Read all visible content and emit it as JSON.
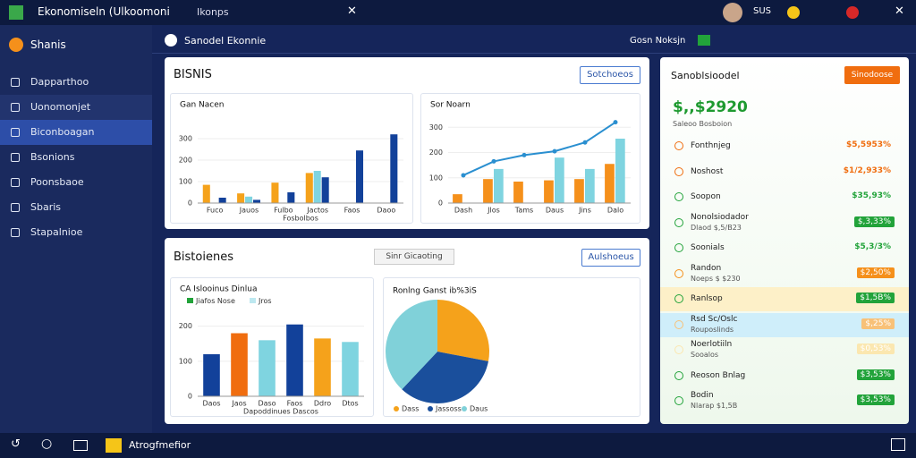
{
  "topbar": {
    "title": "Ekonomiseln (Ulkoomoni",
    "tab": "Ikonps",
    "user": "SUS"
  },
  "sidebar": {
    "brand": "Shanis",
    "items": [
      "Dapparthoo",
      "Uonomonjet",
      "Biconboagan",
      "Bsonions",
      "Poonsbaoe",
      "Sbaris",
      "Stapalnioe"
    ]
  },
  "header": {
    "title": "Sanodel Ekonnie",
    "right": "Gosn Noksjn"
  },
  "panel1": {
    "title": "BISNIS",
    "button": "Sotchoeos"
  },
  "panel2": {
    "title": "Bistoienes",
    "dropdown": "Sinr Gicaoting",
    "button": "Aulshoeus"
  },
  "chart1": {
    "type": "bar",
    "title": "Gan Nacen",
    "subtitle": "Fosbolbos",
    "categories": [
      "Fuco",
      "Jauos",
      "Fulbo",
      "Jactos",
      "Faos",
      "Daoo"
    ],
    "series": [
      {
        "color": "#f5a21b",
        "values": [
          85,
          45,
          95,
          140,
          null,
          null
        ]
      },
      {
        "color": "#7fd4e0",
        "values": [
          null,
          30,
          null,
          150,
          null,
          null
        ]
      },
      {
        "color": "#12419a",
        "values": [
          25,
          15,
          50,
          120,
          245,
          320
        ]
      }
    ],
    "ylim": [
      0,
      400
    ],
    "yticks": [
      0,
      100,
      200,
      300
    ]
  },
  "chart2": {
    "type": "bar",
    "title": "Sor Noarn",
    "categories": [
      "Dash",
      "Jlos",
      "Tams",
      "Daus",
      "Jins",
      "Dalo"
    ],
    "series": [
      {
        "color": "#f5901b",
        "values": [
          35,
          95,
          85,
          90,
          95,
          155
        ]
      },
      {
        "color": "#7fd4e0",
        "values": [
          null,
          135,
          null,
          180,
          135,
          255
        ]
      },
      {
        "color": "#2a8fd0",
        "style": "line",
        "values": [
          110,
          165,
          190,
          205,
          240,
          320
        ]
      }
    ],
    "ylim": [
      0,
      340
    ],
    "yticks": [
      0,
      100,
      200,
      300
    ]
  },
  "chart3": {
    "type": "bar",
    "title": "CA Islooinus Dinlua",
    "subtitle": "Dapoddinues Dascos",
    "categories": [
      "Daos",
      "Jaos",
      "Daso",
      "Faos",
      "Ddro",
      "Dtos"
    ],
    "values": [
      120,
      180,
      160,
      205,
      165,
      155
    ],
    "colors": [
      "#12419a",
      "#f06d0f",
      "#7fd4e0",
      "#12419a",
      "#f5a21b",
      "#7fd4e0"
    ],
    "legend": [
      {
        "name": "Jiafos Nose",
        "color": "#22a33a"
      },
      {
        "name": "Jros",
        "color": "#bde8f0"
      }
    ],
    "ylim": [
      0,
      240
    ],
    "yticks": [
      0,
      100,
      200
    ]
  },
  "chart4": {
    "type": "pie",
    "title": "Ronlng Ganst ib%3iS",
    "categories": [
      "Dass",
      "Jassoss",
      "Daus"
    ],
    "values": [
      28,
      34,
      38
    ],
    "colors": [
      "#f5a21b",
      "#1a4f9c",
      "#80d1d9"
    ]
  },
  "right": {
    "title": "Sanoblsioodel",
    "button": "Sinodoose",
    "big": "$,,$2920",
    "sub": "Saleoo Bosboion",
    "items": [
      {
        "name": "Fonthnjeg",
        "amount": "$5,5953%",
        "color": "#f06d0f"
      },
      {
        "name": "Noshost",
        "amount": "$1/2,933%",
        "color": "#f06d0f"
      },
      {
        "name": "Soopon",
        "amount": "$35,93%",
        "color": "#22a33a"
      },
      {
        "name": "Nonolsiodador",
        "sub": "Dlaod $,5/B23",
        "amount": "$,3,33%",
        "color": "#22a33a",
        "badge": true
      },
      {
        "name": "Soonials",
        "amount": "$5,3/3%",
        "color": "#22a33a"
      },
      {
        "name": "Randon",
        "sub": "Noeps $ $230",
        "amount": "$2,50%",
        "color": "#f5901b",
        "badge": true
      },
      {
        "name": "Ranlsop",
        "amount": "$1,5B%",
        "color": "#22a33a",
        "badge": true,
        "row": "#fdf0c8"
      },
      {
        "name": "Rsd Sc/Oslc",
        "sub": "Rouposlinds",
        "amount": "$,25%",
        "color": "#f8c178",
        "badge": true,
        "row": "#cfeefa"
      },
      {
        "name": "Noerlotiiln",
        "sub": "Sooalos",
        "amount": "$0,53%",
        "color": "#fbe7b0",
        "badge": true
      },
      {
        "name": "Reoson Bnlag",
        "amount": "$3,53%",
        "color": "#22a33a",
        "badge": true
      },
      {
        "name": "Bodin",
        "sub": "Nlarap $1,5B",
        "amount": "$3,53%",
        "color": "#22a33a",
        "badge": true
      }
    ]
  },
  "taskbar": {
    "app": "Atrogfmefior"
  }
}
